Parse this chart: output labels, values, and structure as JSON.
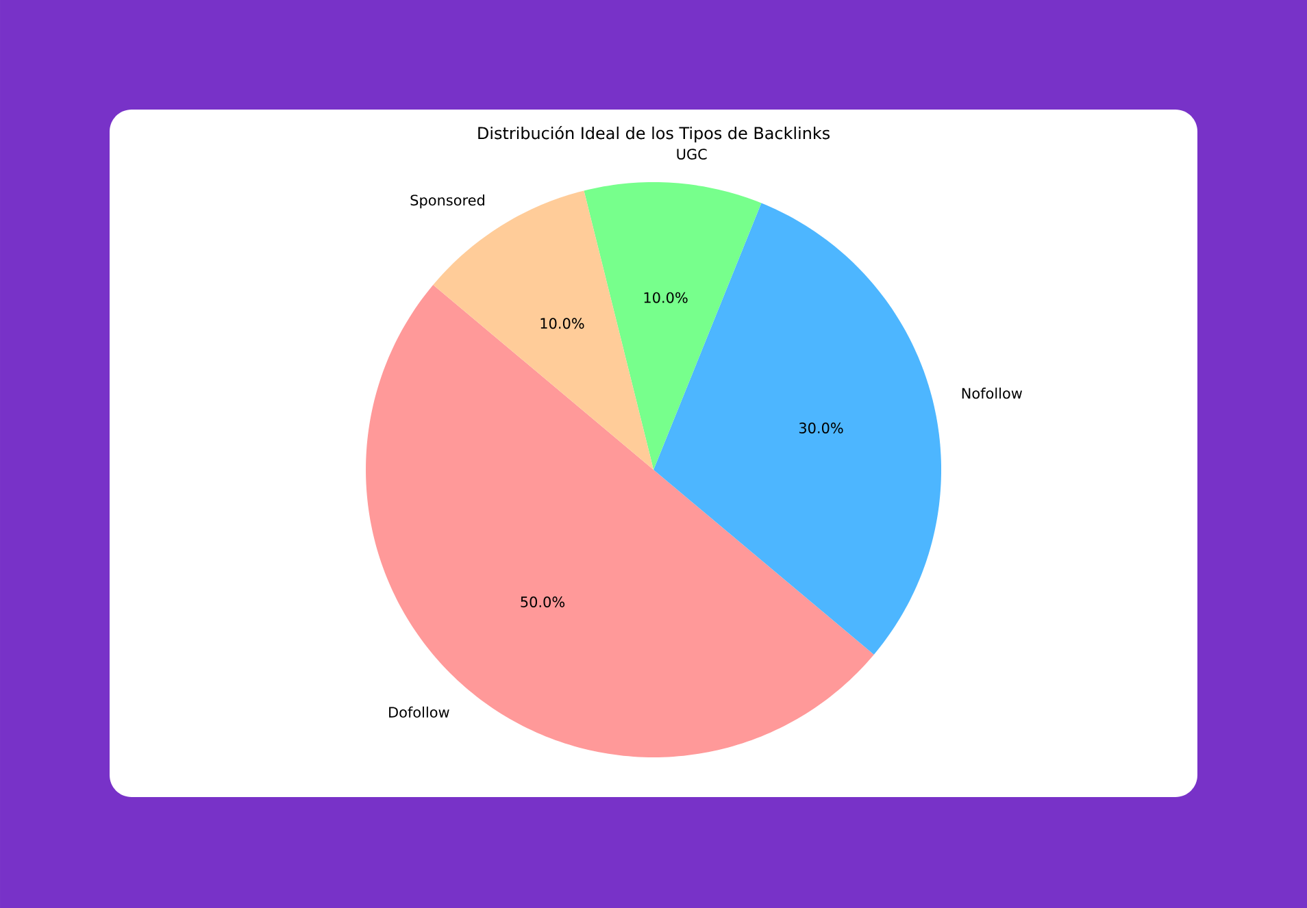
{
  "chart_data": {
    "type": "pie",
    "title": "Distribución Ideal de los Tipos de Backlinks",
    "categories": [
      "Dofollow",
      "Nofollow",
      "UGC",
      "Sponsored"
    ],
    "values": [
      50,
      30,
      10,
      10
    ],
    "colors": [
      "#ff9999",
      "#4db6ff",
      "#77ff8c",
      "#ffcc99"
    ],
    "value_labels": [
      "50.0%",
      "30.0%",
      "10.0%",
      "10.0%"
    ]
  }
}
